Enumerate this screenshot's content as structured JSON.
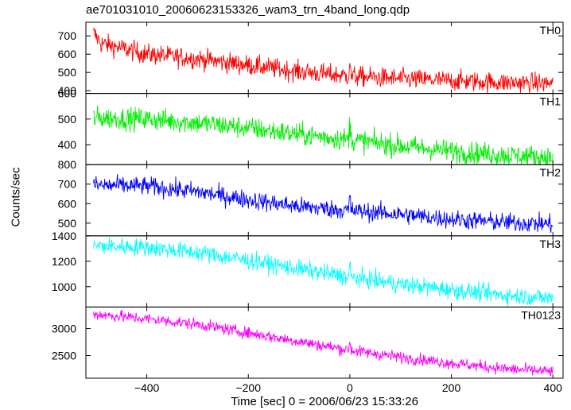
{
  "chart_data": {
    "type": "line",
    "title": "ae701031010_20060623153326_wam3_trn_4band_long.qdp",
    "xlabel": "Time [sec] 0 = 2006/06/23 15:33:26",
    "ylabel": "Counts/sec",
    "xlim": [
      -520,
      420
    ],
    "xticks": [
      -400,
      -200,
      0,
      200,
      400
    ],
    "x_step": 1,
    "panels": [
      {
        "name": "TH0",
        "color": "#ff0000",
        "ylim": [
          385,
          775
        ],
        "yticks": [
          400,
          500,
          600,
          700
        ],
        "trend": [
          [
            -505,
            715
          ],
          [
            -490,
            660
          ],
          [
            -400,
            600
          ],
          [
            -300,
            575
          ],
          [
            -200,
            540
          ],
          [
            -100,
            505
          ],
          [
            0,
            480
          ],
          [
            100,
            465
          ],
          [
            200,
            455
          ],
          [
            300,
            445
          ],
          [
            400,
            440
          ]
        ],
        "noise": 28
      },
      {
        "name": "TH1",
        "color": "#00ee00",
        "ylim": [
          322,
          600
        ],
        "yticks": [
          400,
          500,
          600
        ],
        "trend": [
          [
            -505,
            505
          ],
          [
            -400,
            500
          ],
          [
            -300,
            485
          ],
          [
            -200,
            465
          ],
          [
            -100,
            440
          ],
          [
            0,
            420
          ],
          [
            100,
            395
          ],
          [
            200,
            375
          ],
          [
            300,
            360
          ],
          [
            400,
            350
          ]
        ],
        "noise": 22
      },
      {
        "name": "TH2",
        "color": "#0000ff",
        "ylim": [
          435,
          800
        ],
        "yticks": [
          500,
          600,
          700,
          800
        ],
        "trend": [
          [
            -505,
            695
          ],
          [
            -400,
            690
          ],
          [
            -300,
            660
          ],
          [
            -200,
            620
          ],
          [
            -100,
            585
          ],
          [
            0,
            565
          ],
          [
            100,
            545
          ],
          [
            200,
            520
          ],
          [
            300,
            505
          ],
          [
            400,
            495
          ]
        ],
        "noise": 24
      },
      {
        "name": "TH3",
        "color": "#00ffff",
        "ylim": [
          840,
          1400
        ],
        "yticks": [
          1000,
          1200,
          1400
        ],
        "trend": [
          [
            -505,
            1320
          ],
          [
            -400,
            1310
          ],
          [
            -300,
            1270
          ],
          [
            -200,
            1205
          ],
          [
            -100,
            1140
          ],
          [
            0,
            1075
          ],
          [
            100,
            1020
          ],
          [
            200,
            975
          ],
          [
            300,
            935
          ],
          [
            400,
            910
          ]
        ],
        "noise": 35
      },
      {
        "name": "TH0123",
        "color": "#ff00ff",
        "ylim": [
          2080,
          3400
        ],
        "yticks": [
          2500,
          3000
        ],
        "trend": [
          [
            -505,
            3270
          ],
          [
            -400,
            3180
          ],
          [
            -300,
            3080
          ],
          [
            -200,
            2920
          ],
          [
            -100,
            2760
          ],
          [
            0,
            2600
          ],
          [
            100,
            2470
          ],
          [
            200,
            2360
          ],
          [
            300,
            2260
          ],
          [
            400,
            2200
          ]
        ],
        "noise": 55
      }
    ]
  }
}
